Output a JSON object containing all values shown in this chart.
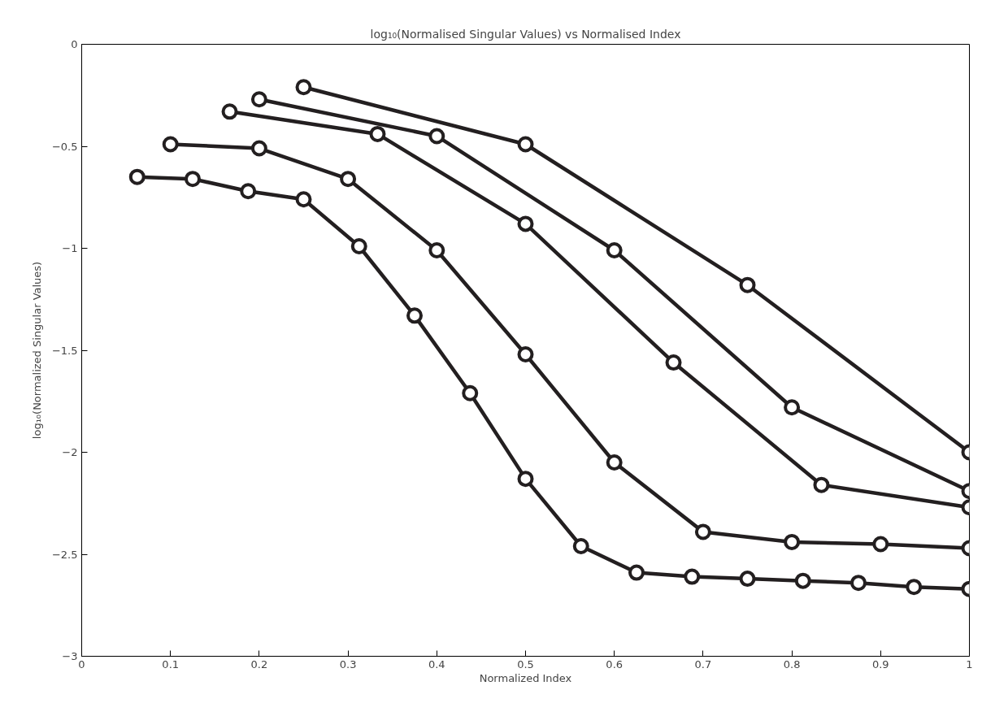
{
  "chart_data": {
    "type": "line",
    "title": "log₁₀(Normalised Singular Values) vs Normalised Index",
    "xlabel": "Normalized Index",
    "ylabel": "log₁₀(Normalized Singular Values)",
    "marker": "circle",
    "line_style": "solid",
    "grid": false,
    "xlim": [
      0,
      1
    ],
    "ylim": [
      -3,
      0
    ],
    "xticks": [
      0,
      0.1,
      0.2,
      0.3,
      0.4,
      0.5,
      0.6,
      0.7,
      0.8,
      0.9,
      1
    ],
    "yticks": [
      -3,
      -2.5,
      -2,
      -1.5,
      -1,
      -0.5,
      0
    ],
    "series": [
      {
        "color": "#231f20",
        "x": [
          0.0625,
          0.125,
          0.1875,
          0.25,
          0.3125,
          0.375,
          0.4375,
          0.5,
          0.5625,
          0.625,
          0.6875,
          0.75,
          0.8125,
          0.875,
          0.9375,
          1
        ],
        "values": [
          -0.65,
          -0.66,
          -0.72,
          -0.76,
          -0.99,
          -1.33,
          -1.71,
          -2.13,
          -2.46,
          -2.59,
          -2.61,
          -2.62,
          -2.63,
          -2.64,
          -2.66,
          -2.67
        ]
      },
      {
        "color": "#231f20",
        "x": [
          0.1,
          0.2,
          0.3,
          0.4,
          0.5,
          0.6,
          0.7,
          0.8,
          0.9,
          1
        ],
        "values": [
          -0.49,
          -0.51,
          -0.66,
          -1.01,
          -1.52,
          -2.05,
          -2.39,
          -2.44,
          -2.45,
          -2.47
        ]
      },
      {
        "color": "#231f20",
        "x": [
          0.1667,
          0.3333,
          0.5,
          0.6667,
          0.8333,
          1
        ],
        "values": [
          -0.33,
          -0.44,
          -0.88,
          -1.56,
          -2.16,
          -2.27
        ]
      },
      {
        "color": "#231f20",
        "x": [
          0.2,
          0.4,
          0.6,
          0.8,
          1
        ],
        "values": [
          -0.27,
          -0.45,
          -1.01,
          -1.78,
          -2.19
        ]
      },
      {
        "color": "#231f20",
        "x": [
          0.25,
          0.5,
          0.75,
          1
        ],
        "values": [
          -0.21,
          -0.49,
          -1.18,
          -2.0
        ]
      }
    ]
  }
}
